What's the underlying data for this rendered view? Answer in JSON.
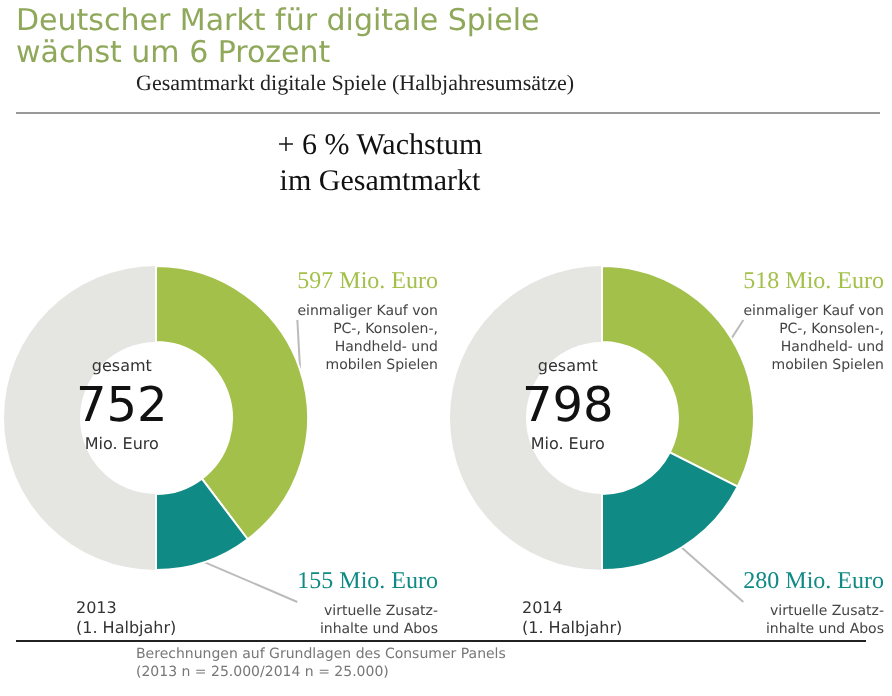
{
  "chart_data": [
    {
      "type": "donut",
      "title": "Deutscher Markt für digitale Spiele\nwächst um 6 Prozent",
      "subtitle": "Gesamtmarkt digitale Spiele (Halbjahresumsätze)",
      "xlabel": "2013\n(1. Halbjahr)",
      "categories": [
        "einmaliger Kauf von\nPC-, Konsolen-,\nHandheld- und\nmobilen Spielen",
        "virtuelle Zusatz-\ninhalte und Abos"
      ],
      "values": [
        597,
        155
      ],
      "value_labels": [
        "597 Mio. Euro",
        "155 Mio. Euro"
      ],
      "colors": [
        "#a3c04b",
        "#108a84"
      ],
      "annotations": [
        "gesamt\n752\nMio. Euro",
        "+ 6 % Wachstum\nim Gesamtmarkt",
        "Berechnungen auf Grundlagen des Consumer Panels\n(2013 n = 25.000/2014 n = 25.000)"
      ]
    },
    {
      "type": "donut",
      "xlabel": "2014\n(1. Halbjahr)",
      "categories": [
        "einmaliger Kauf von\nPC-, Konsolen-,\nHandheld- und\nmobilen Spielen",
        "virtuelle Zusatz-\ninhalte und Abos"
      ],
      "values": [
        518,
        280
      ],
      "value_labels": [
        "518 Mio. Euro",
        "280 Mio. Euro"
      ],
      "colors": [
        "#a3c04b",
        "#108a84"
      ],
      "annotations": [
        "gesamt\n798\nMio. Euro"
      ]
    }
  ]
}
